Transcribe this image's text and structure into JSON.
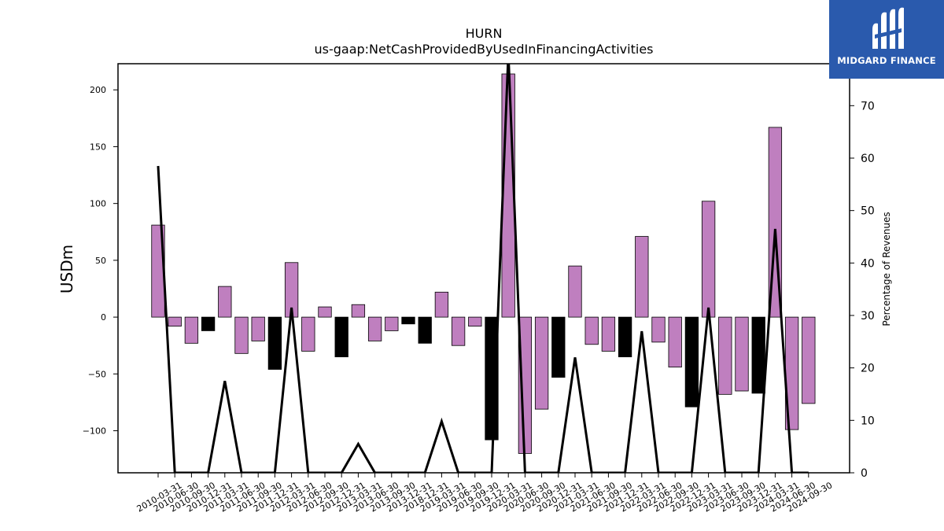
{
  "chart_data": {
    "type": "bar",
    "title": "HURN",
    "subtitle": "us-gaap:NetCashProvidedByUsedInFinancingActivities",
    "ylabel": "USDm",
    "y2label": "Percentage of Revenues",
    "ylim": [
      -137,
      223
    ],
    "y2lim": [
      0,
      78
    ],
    "yticks": [
      -100,
      -50,
      0,
      50,
      100,
      150,
      200
    ],
    "y2ticks": [
      0,
      10,
      20,
      30,
      40,
      50,
      60,
      70
    ],
    "categories": [
      "2010-03-31",
      "2010-06-30",
      "2010-09-30",
      "2010-12-31",
      "2011-03-31",
      "2011-06-30",
      "2011-09-30",
      "2011-12-31",
      "2012-03-31",
      "2012-06-30",
      "2012-09-30",
      "2012-12-31",
      "2013-03-31",
      "2013-06-30",
      "2013-09-30",
      "2013-12-31",
      "2018-12-31",
      "2019-03-31",
      "2019-06-30",
      "2019-09-30",
      "2019-12-31",
      "2020-03-31",
      "2020-06-30",
      "2020-09-30",
      "2020-12-31",
      "2021-03-31",
      "2021-06-30",
      "2021-09-30",
      "2021-12-31",
      "2022-03-31",
      "2022-06-30",
      "2022-09-30",
      "2022-12-31",
      "2023-03-31",
      "2023-06-30",
      "2023-09-30",
      "2023-12-31",
      "2024-03-31",
      "2024-06-30",
      "2024-09-30"
    ],
    "series": [
      {
        "kind": "bar",
        "values": [
          81,
          -8,
          -23,
          -12,
          27,
          -32,
          -21,
          -46,
          48,
          -30,
          9,
          -35,
          11,
          -21,
          -12,
          -6,
          -23,
          22,
          -25,
          -8,
          -108,
          214,
          -120,
          -81,
          -53,
          45,
          -24,
          -30,
          -35,
          71,
          -22,
          -44,
          -79,
          102,
          -68,
          -65,
          -67,
          167,
          -99,
          -76
        ],
        "colors": [
          "#bf7fbf",
          "#bf7fbf",
          "#bf7fbf",
          "#000000",
          "#bf7fbf",
          "#bf7fbf",
          "#bf7fbf",
          "#000000",
          "#bf7fbf",
          "#bf7fbf",
          "#bf7fbf",
          "#000000",
          "#bf7fbf",
          "#bf7fbf",
          "#bf7fbf",
          "#000000",
          "#000000",
          "#bf7fbf",
          "#bf7fbf",
          "#bf7fbf",
          "#000000",
          "#bf7fbf",
          "#bf7fbf",
          "#bf7fbf",
          "#000000",
          "#bf7fbf",
          "#bf7fbf",
          "#bf7fbf",
          "#000000",
          "#bf7fbf",
          "#bf7fbf",
          "#bf7fbf",
          "#000000",
          "#bf7fbf",
          "#bf7fbf",
          "#bf7fbf",
          "#000000",
          "#bf7fbf",
          "#bf7fbf",
          "#bf7fbf"
        ]
      },
      {
        "kind": "line",
        "axis": "right",
        "color": "#000000",
        "values": [
          58.5,
          0,
          0,
          0,
          17.5,
          0,
          0,
          0,
          31.5,
          0,
          0,
          0,
          5.5,
          0,
          0,
          0,
          0,
          9.8,
          0,
          0,
          0,
          80,
          0,
          0,
          0,
          22,
          0,
          0,
          0,
          27,
          0,
          0,
          0,
          31.5,
          0,
          0,
          0,
          46.5,
          0,
          0
        ]
      }
    ],
    "grid": false,
    "legend": "none"
  },
  "brand": {
    "name": "MIDGARD FINANCE",
    "background": "#2a5aad",
    "text_color": "#ffffff"
  }
}
